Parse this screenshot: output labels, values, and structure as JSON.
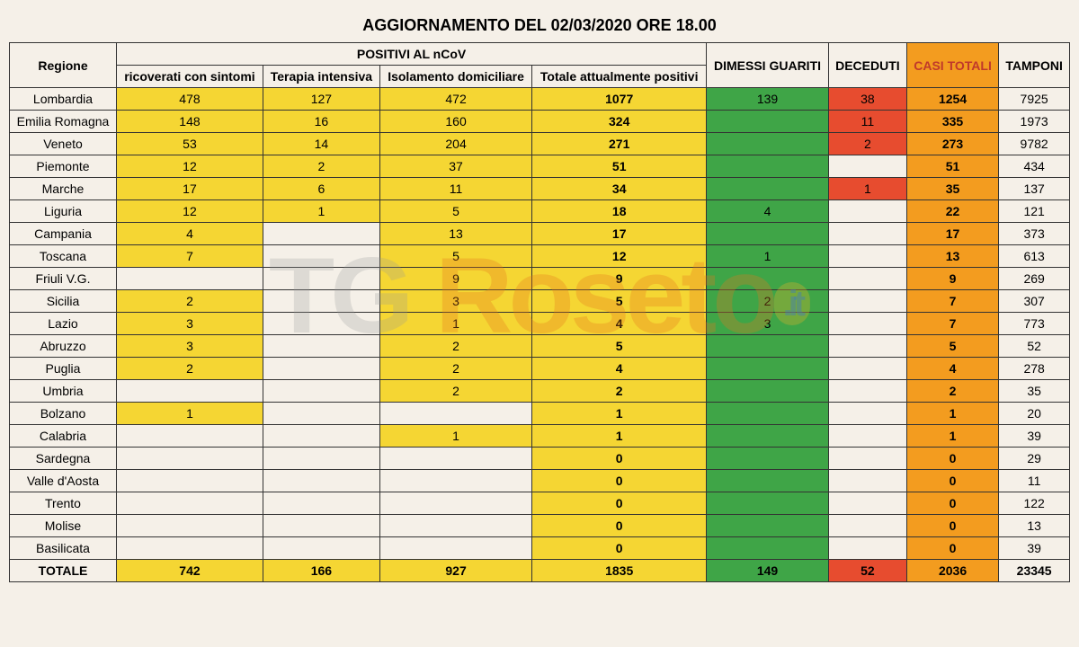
{
  "title": "AGGIORNAMENTO DEL 02/03/2020 ORE 18.00",
  "headers": {
    "regione": "Regione",
    "positivi_group": "POSITIVI AL nCoV",
    "ricoverati": "ricoverati con sintomi",
    "terapia": "Terapia intensiva",
    "isolamento": "Isolamento domiciliare",
    "totale_pos": "Totale attualmente positivi",
    "dimessi": "DIMESSI GUARITI",
    "deceduti": "DECEDUTI",
    "casi_totali": "CASI TOTALI",
    "tamponi": "TAMPONI"
  },
  "colors": {
    "yellow": "#f5d633",
    "green": "#3fa547",
    "red": "#e74c2f",
    "orange": "#f39c1f",
    "blank": "#f5f0e8"
  },
  "rows": [
    {
      "region": "Lombardia",
      "ricoverati": "478",
      "terapia": "127",
      "isolamento": "472",
      "totale": "1077",
      "dimessi": "139",
      "deceduti": "38",
      "casi": "1254",
      "tamponi": "7925"
    },
    {
      "region": "Emilia Romagna",
      "ricoverati": "148",
      "terapia": "16",
      "isolamento": "160",
      "totale": "324",
      "dimessi": "",
      "deceduti": "11",
      "casi": "335",
      "tamponi": "1973"
    },
    {
      "region": "Veneto",
      "ricoverati": "53",
      "terapia": "14",
      "isolamento": "204",
      "totale": "271",
      "dimessi": "",
      "deceduti": "2",
      "casi": "273",
      "tamponi": "9782"
    },
    {
      "region": "Piemonte",
      "ricoverati": "12",
      "terapia": "2",
      "isolamento": "37",
      "totale": "51",
      "dimessi": "",
      "deceduti": "",
      "casi": "51",
      "tamponi": "434"
    },
    {
      "region": "Marche",
      "ricoverati": "17",
      "terapia": "6",
      "isolamento": "11",
      "totale": "34",
      "dimessi": "",
      "deceduti": "1",
      "casi": "35",
      "tamponi": "137"
    },
    {
      "region": "Liguria",
      "ricoverati": "12",
      "terapia": "1",
      "isolamento": "5",
      "totale": "18",
      "dimessi": "4",
      "deceduti": "",
      "casi": "22",
      "tamponi": "121"
    },
    {
      "region": "Campania",
      "ricoverati": "4",
      "terapia": "",
      "isolamento": "13",
      "totale": "17",
      "dimessi": "",
      "deceduti": "",
      "casi": "17",
      "tamponi": "373"
    },
    {
      "region": "Toscana",
      "ricoverati": "7",
      "terapia": "",
      "isolamento": "5",
      "totale": "12",
      "dimessi": "1",
      "deceduti": "",
      "casi": "13",
      "tamponi": "613"
    },
    {
      "region": "Friuli V.G.",
      "ricoverati": "",
      "terapia": "",
      "isolamento": "9",
      "totale": "9",
      "dimessi": "",
      "deceduti": "",
      "casi": "9",
      "tamponi": "269"
    },
    {
      "region": "Sicilia",
      "ricoverati": "2",
      "terapia": "",
      "isolamento": "3",
      "totale": "5",
      "dimessi": "2",
      "deceduti": "",
      "casi": "7",
      "tamponi": "307"
    },
    {
      "region": "Lazio",
      "ricoverati": "3",
      "terapia": "",
      "isolamento": "1",
      "totale": "4",
      "dimessi": "3",
      "deceduti": "",
      "casi": "7",
      "tamponi": "773"
    },
    {
      "region": "Abruzzo",
      "ricoverati": "3",
      "terapia": "",
      "isolamento": "2",
      "totale": "5",
      "dimessi": "",
      "deceduti": "",
      "casi": "5",
      "tamponi": "52"
    },
    {
      "region": "Puglia",
      "ricoverati": "2",
      "terapia": "",
      "isolamento": "2",
      "totale": "4",
      "dimessi": "",
      "deceduti": "",
      "casi": "4",
      "tamponi": "278"
    },
    {
      "region": "Umbria",
      "ricoverati": "",
      "terapia": "",
      "isolamento": "2",
      "totale": "2",
      "dimessi": "",
      "deceduti": "",
      "casi": "2",
      "tamponi": "35"
    },
    {
      "region": "Bolzano",
      "ricoverati": "1",
      "terapia": "",
      "isolamento": "",
      "totale": "1",
      "dimessi": "",
      "deceduti": "",
      "casi": "1",
      "tamponi": "20"
    },
    {
      "region": "Calabria",
      "ricoverati": "",
      "terapia": "",
      "isolamento": "1",
      "totale": "1",
      "dimessi": "",
      "deceduti": "",
      "casi": "1",
      "tamponi": "39"
    },
    {
      "region": "Sardegna",
      "ricoverati": "",
      "terapia": "",
      "isolamento": "",
      "totale": "0",
      "dimessi": "",
      "deceduti": "",
      "casi": "0",
      "tamponi": "29"
    },
    {
      "region": "Valle d'Aosta",
      "ricoverati": "",
      "terapia": "",
      "isolamento": "",
      "totale": "0",
      "dimessi": "",
      "deceduti": "",
      "casi": "0",
      "tamponi": "11"
    },
    {
      "region": "Trento",
      "ricoverati": "",
      "terapia": "",
      "isolamento": "",
      "totale": "0",
      "dimessi": "",
      "deceduti": "",
      "casi": "0",
      "tamponi": "122"
    },
    {
      "region": "Molise",
      "ricoverati": "",
      "terapia": "",
      "isolamento": "",
      "totale": "0",
      "dimessi": "",
      "deceduti": "",
      "casi": "0",
      "tamponi": "13"
    },
    {
      "region": "Basilicata",
      "ricoverati": "",
      "terapia": "",
      "isolamento": "",
      "totale": "0",
      "dimessi": "",
      "deceduti": "",
      "casi": "0",
      "tamponi": "39"
    }
  ],
  "total": {
    "label": "TOTALE",
    "ricoverati": "742",
    "terapia": "166",
    "isolamento": "927",
    "totale": "1835",
    "dimessi": "149",
    "deceduti": "52",
    "casi": "2036",
    "tamponi": "23345"
  },
  "watermark": {
    "tg": "TG",
    "roseto": "Roseto",
    "it": ".it"
  }
}
